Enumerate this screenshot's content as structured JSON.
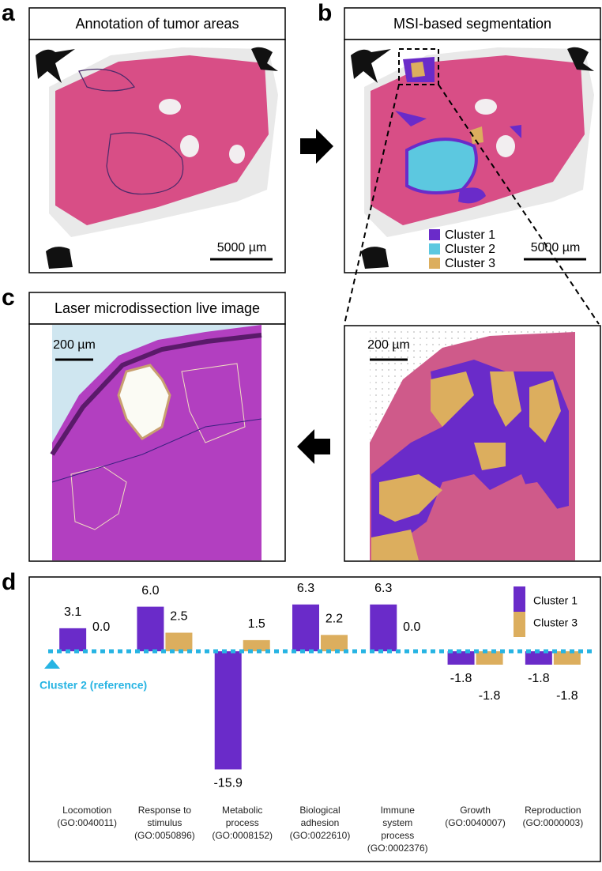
{
  "panels": [
    {
      "letter": "a",
      "title": "Annotation of tumor areas",
      "scale_bar": "5000 µm"
    },
    {
      "letter": "b",
      "title": "MSI-based segmentation",
      "scale_bar": "5000 µm",
      "legend": [
        "Cluster 1",
        "Cluster 2",
        "Cluster 3"
      ]
    },
    {
      "letter": "c",
      "title": "Laser microdissection live image",
      "scale_bar": "200 µm",
      "zoom_scale_bar": "200 µm"
    },
    {
      "letter": "d"
    }
  ],
  "chart_data": {
    "type": "bar",
    "categories": [
      "Locomotion\n(GO:0040011)",
      "Response to\nstimulus\n(GO:0050896)",
      "Metabolic\nprocess\n(GO:0008152)",
      "Biological\nadhesion\n(GO:0022610)",
      "Immune\nsystem\nprocess\n(GO:0002376)",
      "Growth\n(GO:0040007)",
      "Reproduction\n(GO:0000003)"
    ],
    "series": [
      {
        "name": "Cluster 1",
        "color": "#6a2bc9",
        "values": [
          3.1,
          6.0,
          -15.9,
          6.3,
          6.3,
          -1.8,
          -1.8
        ],
        "value_labels": [
          "3.1",
          "6.0",
          "-15.9",
          "6.3",
          "6.3",
          "-1.8",
          "-1.8"
        ]
      },
      {
        "name": "Cluster 3",
        "color": "#dcae5e",
        "values": [
          0.0,
          2.5,
          1.5,
          2.2,
          0.0,
          -1.8,
          -1.8
        ],
        "value_labels": [
          "0.0",
          "2.5",
          "1.5",
          "2.2",
          "0.0",
          "-1.8",
          "-1.8"
        ]
      }
    ],
    "reference_label": "Cluster 2 (reference)",
    "reference_color": "#27b4e3",
    "legend": "top-right"
  }
}
